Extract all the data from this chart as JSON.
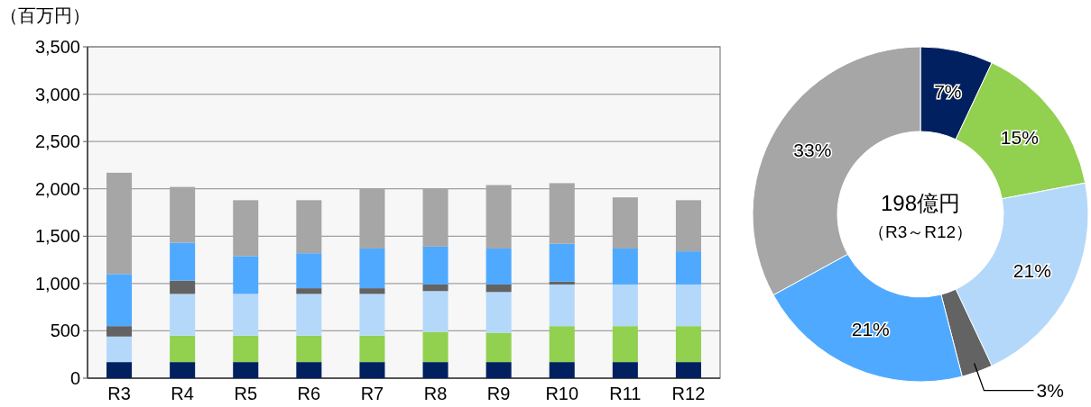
{
  "chart_data": [
    {
      "type": "bar",
      "ylabel": "（百万円）",
      "stacked": true,
      "grid": "y",
      "categories": [
        "R3",
        "R4",
        "R5",
        "R6",
        "R7",
        "R8",
        "R9",
        "R10",
        "R11",
        "R12"
      ],
      "ylim": [
        0,
        3500
      ],
      "yticks": [
        {
          "value": 0,
          "label": "0"
        },
        {
          "value": 500,
          "label": "500"
        },
        {
          "value": 1000,
          "label": "1,000"
        },
        {
          "value": 1500,
          "label": "1,500"
        },
        {
          "value": 2000,
          "label": "2,000"
        },
        {
          "value": 2500,
          "label": "2,500"
        },
        {
          "value": 3000,
          "label": "3,000"
        },
        {
          "value": 3500,
          "label": "3,500"
        }
      ],
      "series": [
        {
          "color": "#002060",
          "values": [
            170,
            170,
            170,
            170,
            170,
            170,
            170,
            170,
            170,
            170
          ]
        },
        {
          "color": "#92d050",
          "values": [
            0,
            280,
            280,
            280,
            280,
            320,
            310,
            380,
            380,
            380
          ]
        },
        {
          "color": "#b4d8fa",
          "values": [
            270,
            440,
            440,
            440,
            440,
            430,
            430,
            440,
            440,
            440
          ]
        },
        {
          "color": "#636363",
          "values": [
            110,
            140,
            0,
            60,
            60,
            70,
            80,
            30,
            0,
            0
          ]
        },
        {
          "color": "#4faaff",
          "values": [
            550,
            400,
            400,
            370,
            420,
            400,
            380,
            400,
            380,
            350
          ]
        },
        {
          "color": "#a6a6a6",
          "values": [
            1070,
            590,
            590,
            560,
            630,
            610,
            670,
            640,
            540,
            540
          ]
        }
      ]
    },
    {
      "type": "donut",
      "categories": [
        null,
        null,
        null,
        null,
        null,
        null
      ],
      "values": [
        7,
        15,
        21,
        3,
        21,
        33
      ],
      "colors": [
        "#002060",
        "#92d050",
        "#b4d8fa",
        "#636363",
        "#4faaff",
        "#a6a6a6"
      ],
      "value_labels": [
        "7%",
        "15%",
        "21%",
        "3%",
        "21%",
        "33%"
      ],
      "annotations": [
        "198億円",
        "（R3～R12）"
      ]
    }
  ]
}
